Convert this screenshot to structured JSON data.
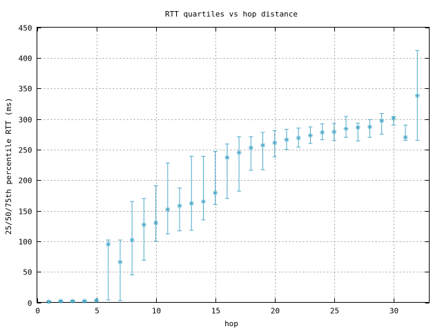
{
  "chart_data": {
    "type": "scatter",
    "title": "RTT quartiles vs hop distance",
    "xlabel": "hop",
    "ylabel": "25/50/75th percentile RTT (ms)",
    "xlim": [
      0,
      33
    ],
    "ylim": [
      0,
      450
    ],
    "xticks": [
      0,
      5,
      10,
      15,
      20,
      25,
      30
    ],
    "yticks": [
      0,
      50,
      100,
      150,
      200,
      250,
      300,
      350,
      400,
      450
    ],
    "grid": true,
    "marker": "asterisk",
    "color": "#4aa8c8",
    "series": [
      {
        "x": [
          1,
          2,
          3,
          4,
          5,
          6,
          7,
          8,
          9,
          10,
          11,
          12,
          13,
          14,
          15,
          16,
          17,
          18,
          19,
          20,
          21,
          22,
          23,
          24,
          25,
          26,
          27,
          28,
          29,
          30,
          31,
          32
        ],
        "p25": [
          1,
          1,
          1,
          1,
          2,
          4,
          3,
          45,
          69,
          100,
          112,
          117,
          118,
          135,
          160,
          170,
          182,
          216,
          217,
          238,
          250,
          254,
          260,
          266,
          265,
          270,
          264,
          270,
          275,
          290,
          265,
          265
        ],
        "p50": [
          1,
          2,
          2,
          2,
          3,
          95,
          66,
          102,
          127,
          130,
          152,
          158,
          162,
          165,
          179,
          237,
          245,
          253,
          257,
          261,
          266,
          269,
          273,
          278,
          279,
          284,
          286,
          287,
          297,
          301,
          270,
          338
        ],
        "p75": [
          2,
          3,
          3,
          3,
          5,
          102,
          102,
          165,
          170,
          191,
          228,
          187,
          239,
          239,
          247,
          259,
          271,
          271,
          278,
          281,
          283,
          285,
          287,
          292,
          293,
          304,
          293,
          299,
          309,
          304,
          290,
          412
        ]
      }
    ]
  }
}
